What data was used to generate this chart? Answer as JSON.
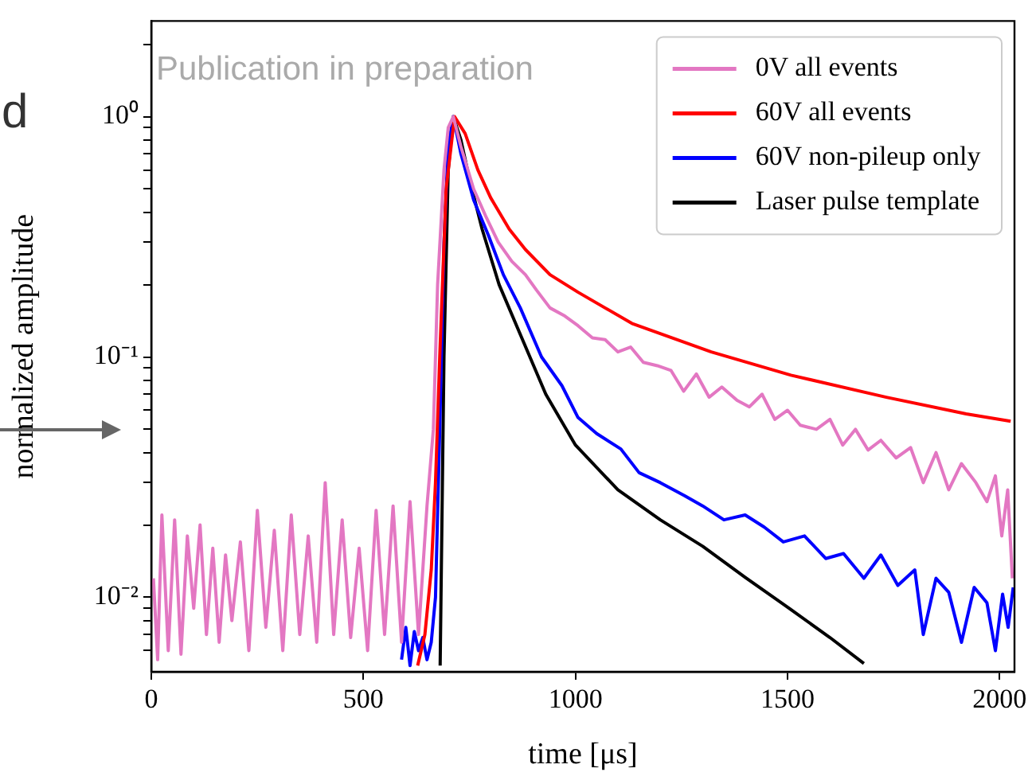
{
  "chart_data": {
    "type": "line",
    "xlabel": "time [μs]",
    "ylabel": "normalized amplitude",
    "annotations": [
      "d",
      "Publication in preparation"
    ],
    "log": "y",
    "grid": false,
    "legend": "top right",
    "xlim": [
      0,
      2035
    ],
    "xticks": [
      0,
      500,
      1000,
      1500,
      2000
    ],
    "ylim": [
      0.0049,
      2.5
    ],
    "yticks": [
      {
        "value": 0.006,
        "label": null
      },
      {
        "value": 0.007,
        "label": null
      },
      {
        "value": 0.008,
        "label": null
      },
      {
        "value": 0.009,
        "label": null
      },
      {
        "value": 0.01,
        "label": "10⁻²"
      },
      {
        "value": 0.02,
        "label": null
      },
      {
        "value": 0.03,
        "label": null
      },
      {
        "value": 0.04,
        "label": null
      },
      {
        "value": 0.05,
        "label": null
      },
      {
        "value": 0.06,
        "label": null
      },
      {
        "value": 0.07,
        "label": null
      },
      {
        "value": 0.08,
        "label": null
      },
      {
        "value": 0.09,
        "label": null
      },
      {
        "value": 0.1,
        "label": "10⁻¹"
      },
      {
        "value": 0.2,
        "label": null
      },
      {
        "value": 0.3,
        "label": null
      },
      {
        "value": 0.4,
        "label": null
      },
      {
        "value": 0.5,
        "label": null
      },
      {
        "value": 0.6,
        "label": null
      },
      {
        "value": 0.7,
        "label": null
      },
      {
        "value": 0.8,
        "label": null
      },
      {
        "value": 0.9,
        "label": null
      },
      {
        "value": 1,
        "label": "10⁰"
      },
      {
        "value": 2,
        "label": null
      }
    ],
    "series": [
      {
        "name": "0V all events",
        "color": "#e377c2",
        "x": [
          5,
          15,
          25,
          40,
          55,
          70,
          85,
          100,
          115,
          130,
          145,
          160,
          175,
          190,
          210,
          230,
          250,
          270,
          290,
          310,
          330,
          350,
          370,
          390,
          410,
          430,
          450,
          470,
          490,
          510,
          530,
          550,
          570,
          590,
          610,
          630,
          650,
          665,
          675,
          690,
          700,
          712,
          730,
          760,
          790,
          818,
          850,
          882,
          908,
          940,
          975,
          1006,
          1040,
          1070,
          1100,
          1130,
          1160,
          1193,
          1225,
          1255,
          1285,
          1315,
          1345,
          1381,
          1410,
          1440,
          1470,
          1500,
          1530,
          1568,
          1600,
          1630,
          1660,
          1690,
          1720,
          1756,
          1790,
          1820,
          1850,
          1880,
          1910,
          1944,
          1970,
          1990,
          2005,
          2019,
          2030
        ],
        "values": [
          0.012,
          0.0055,
          0.022,
          0.006,
          0.021,
          0.0058,
          0.018,
          0.009,
          0.02,
          0.007,
          0.016,
          0.0065,
          0.015,
          0.008,
          0.017,
          0.006,
          0.023,
          0.0075,
          0.019,
          0.006,
          0.022,
          0.007,
          0.018,
          0.0065,
          0.03,
          0.007,
          0.021,
          0.0068,
          0.016,
          0.006,
          0.023,
          0.007,
          0.024,
          0.0065,
          0.025,
          0.007,
          0.024,
          0.05,
          0.2,
          0.6,
          0.9,
          1.0,
          0.75,
          0.5,
          0.38,
          0.3,
          0.25,
          0.22,
          0.19,
          0.16,
          0.148,
          0.135,
          0.12,
          0.118,
          0.105,
          0.11,
          0.095,
          0.092,
          0.088,
          0.072,
          0.085,
          0.068,
          0.075,
          0.066,
          0.062,
          0.07,
          0.055,
          0.06,
          0.052,
          0.05,
          0.055,
          0.043,
          0.05,
          0.041,
          0.045,
          0.038,
          0.042,
          0.03,
          0.04,
          0.028,
          0.036,
          0.03,
          0.025,
          0.032,
          0.018,
          0.028,
          0.012
        ]
      },
      {
        "name": "60V all events",
        "color": "#ff0000",
        "x": [
          628,
          645,
          660,
          670,
          680,
          695,
          715,
          740,
          770,
          800,
          844,
          882,
          940,
          1006,
          1133,
          1320,
          1508,
          1733,
          1921,
          2026
        ],
        "values": [
          0.0052,
          0.007,
          0.013,
          0.03,
          0.1,
          0.5,
          1.0,
          0.85,
          0.6,
          0.46,
          0.34,
          0.28,
          0.22,
          0.186,
          0.138,
          0.105,
          0.084,
          0.068,
          0.058,
          0.054
        ]
      },
      {
        "name": "60V non-pileup only",
        "color": "#0000ff",
        "x": [
          590,
          600,
          610,
          620,
          630,
          640,
          650,
          660,
          670,
          680,
          690,
          700,
          712,
          730,
          760,
          795,
          830,
          870,
          920,
          968,
          1006,
          1050,
          1107,
          1150,
          1200,
          1257,
          1300,
          1350,
          1400,
          1445,
          1490,
          1540,
          1590,
          1632,
          1680,
          1720,
          1760,
          1800,
          1820,
          1850,
          1880,
          1910,
          1940,
          1970,
          1990,
          2007,
          2020,
          2032
        ],
        "values": [
          0.0055,
          0.0075,
          0.0052,
          0.0072,
          0.006,
          0.0068,
          0.0055,
          0.0065,
          0.01,
          0.05,
          0.3,
          0.75,
          1.0,
          0.7,
          0.45,
          0.32,
          0.22,
          0.16,
          0.1,
          0.076,
          0.056,
          0.048,
          0.0414,
          0.033,
          0.03,
          0.0265,
          0.024,
          0.021,
          0.022,
          0.0196,
          0.017,
          0.018,
          0.0145,
          0.0152,
          0.012,
          0.015,
          0.0112,
          0.013,
          0.007,
          0.012,
          0.0105,
          0.0065,
          0.011,
          0.0095,
          0.006,
          0.0103,
          0.0075,
          0.011
        ]
      },
      {
        "name": "Laser pulse template",
        "color": "#000000",
        "x": [
          681,
          690,
          700,
          712,
          730,
          750,
          780,
          820,
          870,
          930,
          1000,
          1100,
          1200,
          1300,
          1400,
          1500,
          1600,
          1680
        ],
        "values": [
          0.0052,
          0.1,
          0.6,
          1.0,
          0.8,
          0.55,
          0.34,
          0.2,
          0.124,
          0.07,
          0.043,
          0.028,
          0.021,
          0.0163,
          0.0121,
          0.0091,
          0.0068,
          0.0053
        ]
      }
    ]
  }
}
